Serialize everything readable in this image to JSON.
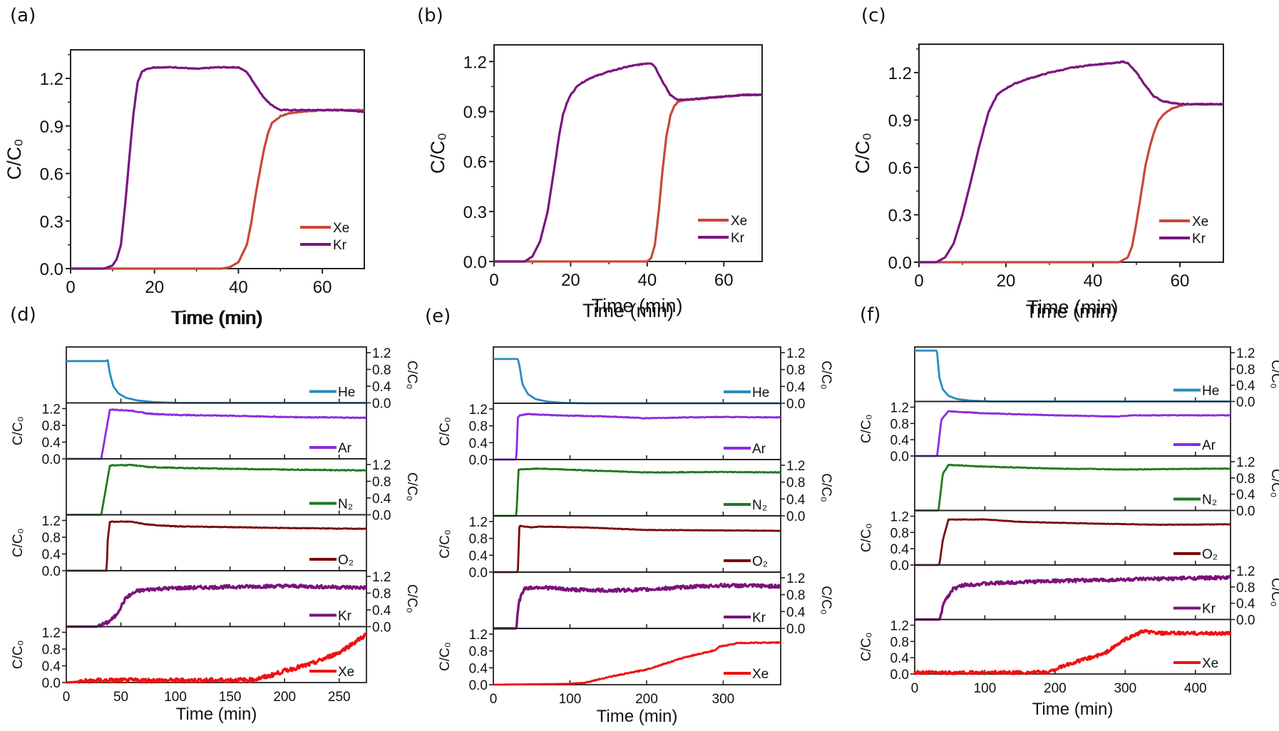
{
  "chart_data": [
    {
      "panel": "(a)",
      "type": "line",
      "xlabel": "Time (min)",
      "ylabel": "C/C₀",
      "xlim": [
        0,
        70
      ],
      "ylim": [
        0,
        1.38
      ],
      "xticks": [
        0,
        20,
        40,
        60
      ],
      "xtick_labels": [
        "0",
        "20",
        "40",
        "60"
      ],
      "yticks": [
        0,
        0.3,
        0.6,
        0.9,
        1.2
      ],
      "ytick_labels": [
        "0.0",
        "0.3",
        "0.6",
        "0.9",
        "1.2"
      ],
      "legend_position": "bottom-right",
      "series": [
        {
          "name": "Xe",
          "color": "#c8483a",
          "x": [
            0,
            36,
            38,
            40,
            42,
            43,
            44,
            45,
            46,
            47,
            48,
            50,
            52,
            55,
            60,
            65,
            70
          ],
          "y": [
            0,
            0,
            0.01,
            0.04,
            0.15,
            0.28,
            0.45,
            0.6,
            0.74,
            0.85,
            0.92,
            0.96,
            0.98,
            0.99,
            1.0,
            1.0,
            1.0
          ]
        },
        {
          "name": "Kr",
          "color": "#7b1580",
          "x": [
            0,
            8,
            10,
            11,
            12,
            13,
            14,
            15,
            16,
            17,
            18,
            20,
            25,
            30,
            35,
            40,
            42,
            44,
            46,
            48,
            50,
            55,
            60,
            65,
            70
          ],
          "y": [
            0,
            0,
            0.02,
            0.06,
            0.15,
            0.4,
            0.7,
            0.98,
            1.18,
            1.24,
            1.26,
            1.27,
            1.27,
            1.26,
            1.27,
            1.27,
            1.24,
            1.16,
            1.08,
            1.03,
            1.0,
            1.0,
            1.0,
            1.0,
            0.99
          ]
        }
      ]
    },
    {
      "panel": "(b)",
      "type": "line",
      "xlabel": "Time (min)",
      "ylabel": "C/C₀",
      "xlim": [
        0,
        70
      ],
      "ylim": [
        0,
        1.3
      ],
      "xticks": [
        0,
        20,
        40,
        60
      ],
      "xtick_labels": [
        "0",
        "20",
        "40",
        "60"
      ],
      "yticks": [
        0,
        0.3,
        0.6,
        0.9,
        1.2
      ],
      "ytick_labels": [
        "0.0",
        "0.3",
        "0.6",
        "0.9",
        "1.2"
      ],
      "legend_position": "bottom-right",
      "series": [
        {
          "name": "Xe",
          "color": "#c8483a",
          "x": [
            0,
            40,
            41,
            42,
            43,
            44,
            45,
            46,
            47,
            48,
            50,
            55,
            60,
            65,
            70
          ],
          "y": [
            0,
            0,
            0.02,
            0.1,
            0.3,
            0.55,
            0.75,
            0.87,
            0.93,
            0.96,
            0.97,
            0.98,
            0.99,
            1.0,
            1.0
          ]
        },
        {
          "name": "Kr",
          "color": "#7b1580",
          "x": [
            0,
            8,
            10,
            12,
            14,
            15,
            16,
            17,
            18,
            19,
            20,
            22,
            25,
            30,
            35,
            40,
            41,
            42,
            44,
            46,
            48,
            50,
            55,
            60,
            65,
            70
          ],
          "y": [
            0,
            0,
            0.03,
            0.12,
            0.3,
            0.45,
            0.6,
            0.76,
            0.88,
            0.95,
            1.0,
            1.06,
            1.1,
            1.14,
            1.17,
            1.19,
            1.19,
            1.17,
            1.08,
            1.0,
            0.97,
            0.97,
            0.98,
            0.99,
            1.0,
            1.0
          ]
        }
      ]
    },
    {
      "panel": "(c)",
      "type": "line",
      "xlabel": "Time (min)",
      "ylabel": "C/C₀",
      "xlim": [
        0,
        70
      ],
      "ylim": [
        0,
        1.38
      ],
      "xticks": [
        0,
        20,
        40,
        60
      ],
      "xtick_labels": [
        "0",
        "20",
        "40",
        "60"
      ],
      "yticks": [
        0,
        0.3,
        0.6,
        0.9,
        1.2
      ],
      "ytick_labels": [
        "0.0",
        "0.3",
        "0.6",
        "0.9",
        "1.2"
      ],
      "legend_position": "bottom-right",
      "series": [
        {
          "name": "Xe",
          "color": "#c8483a",
          "x": [
            0,
            46,
            48,
            49,
            50,
            51,
            52,
            53,
            54,
            55,
            56,
            58,
            60,
            62,
            65,
            70
          ],
          "y": [
            0,
            0,
            0.03,
            0.1,
            0.25,
            0.42,
            0.6,
            0.72,
            0.82,
            0.89,
            0.93,
            0.97,
            0.99,
            1.0,
            1.0,
            1.0
          ]
        },
        {
          "name": "Kr",
          "color": "#7b1580",
          "x": [
            0,
            4,
            6,
            8,
            10,
            12,
            14,
            16,
            18,
            20,
            22,
            25,
            30,
            35,
            40,
            45,
            47,
            48,
            50,
            52,
            54,
            56,
            58,
            60,
            65,
            70
          ],
          "y": [
            0,
            0,
            0.03,
            0.12,
            0.3,
            0.52,
            0.75,
            0.95,
            1.06,
            1.1,
            1.13,
            1.16,
            1.2,
            1.23,
            1.25,
            1.26,
            1.27,
            1.26,
            1.2,
            1.12,
            1.05,
            1.02,
            1.01,
            1.0,
            1.0,
            1.0
          ]
        }
      ]
    },
    {
      "panel": "(d)",
      "type": "line",
      "stacked": true,
      "xlabel": "Time (min)",
      "ylabel": "C/C₀",
      "xlim": [
        0,
        275
      ],
      "ylim": [
        0,
        1.2
      ],
      "xticks": [
        0,
        50,
        100,
        150,
        200,
        250
      ],
      "xtick_labels": [
        "0",
        "50",
        "100",
        "150",
        "200",
        "250"
      ],
      "yticks": [
        0,
        0.4,
        0.8,
        1.2
      ],
      "ytick_labels": [
        "0.0",
        "0.4",
        "0.8",
        "1.2"
      ],
      "top_axis_label": "Time (min)",
      "series": [
        {
          "name": "He",
          "color": "#2a8bbf",
          "axis_side": "right",
          "noise": 0,
          "x": [
            0,
            36,
            38,
            40,
            43,
            48,
            55,
            65,
            80,
            100,
            130,
            275
          ],
          "y": [
            1.0,
            1.0,
            1.02,
            0.7,
            0.4,
            0.22,
            0.12,
            0.06,
            0.02,
            0.0,
            0.0,
            0.0
          ]
        },
        {
          "name": "Ar",
          "color": "#8a2be2",
          "axis_side": "left",
          "noise": 0.01,
          "x": [
            0,
            32,
            40,
            60,
            75,
            100,
            150,
            200,
            275
          ],
          "y": [
            0,
            0,
            1.18,
            1.15,
            1.08,
            1.05,
            1.03,
            1.0,
            0.98
          ]
        },
        {
          "name": "N₂",
          "color": "#1f7a1f",
          "axis_side": "right",
          "noise": 0.01,
          "x": [
            0,
            32,
            40,
            60,
            75,
            100,
            150,
            200,
            275
          ],
          "y": [
            0,
            0,
            1.18,
            1.19,
            1.14,
            1.12,
            1.1,
            1.08,
            1.06
          ]
        },
        {
          "name": "O₂",
          "color": "#7a0a0a",
          "axis_side": "left",
          "noise": 0.008,
          "x": [
            0,
            37,
            38,
            40,
            60,
            75,
            100,
            150,
            200,
            275
          ],
          "y": [
            0,
            0,
            0.75,
            1.17,
            1.17,
            1.1,
            1.06,
            1.04,
            1.02,
            1.0
          ]
        },
        {
          "name": "Kr",
          "color": "#7b127b",
          "axis_side": "right",
          "noise": 0.04,
          "x": [
            0,
            28,
            38,
            45,
            55,
            65,
            80,
            100,
            150,
            200,
            275
          ],
          "y": [
            0,
            0,
            0.1,
            0.25,
            0.7,
            0.85,
            0.9,
            0.92,
            0.95,
            0.97,
            0.93
          ]
        },
        {
          "name": "Xe",
          "color": "#ee1111",
          "axis_side": "left",
          "noise": 0.05,
          "x": [
            0,
            28,
            100,
            170,
            185,
            200,
            225,
            250,
            275
          ],
          "y": [
            0,
            0.05,
            0.05,
            0.06,
            0.15,
            0.28,
            0.45,
            0.72,
            1.15
          ]
        }
      ]
    },
    {
      "panel": "(e)",
      "type": "line",
      "stacked": true,
      "xlabel": "Time (min)",
      "ylabel": "C/C₀",
      "xlim": [
        0,
        375
      ],
      "ylim": [
        0,
        1.2
      ],
      "xticks": [
        0,
        100,
        200,
        300
      ],
      "xtick_labels": [
        "0",
        "100",
        "200",
        "300"
      ],
      "yticks": [
        0,
        0.4,
        0.8,
        1.2
      ],
      "ytick_labels": [
        "0.0",
        "0.4",
        "0.8",
        "1.2"
      ],
      "top_axis_label": "Time (min)",
      "series": [
        {
          "name": "He",
          "color": "#2a8bbf",
          "axis_side": "right",
          "noise": 0,
          "x": [
            0,
            32,
            34,
            38,
            45,
            55,
            70,
            90,
            120,
            375
          ],
          "y": [
            1.05,
            1.05,
            0.9,
            0.45,
            0.22,
            0.1,
            0.04,
            0.01,
            0.0,
            0.0
          ]
        },
        {
          "name": "Ar",
          "color": "#8a2be2",
          "axis_side": "left",
          "noise": 0.008,
          "x": [
            0,
            30,
            32,
            35,
            45,
            80,
            150,
            200,
            250,
            300,
            375
          ],
          "y": [
            0,
            0,
            1.0,
            1.05,
            1.08,
            1.05,
            1.02,
            0.98,
            1.0,
            1.01,
            1.0
          ]
        },
        {
          "name": "N₂",
          "color": "#1f7a1f",
          "axis_side": "right",
          "noise": 0.008,
          "x": [
            0,
            30,
            33,
            60,
            120,
            200,
            300,
            375
          ],
          "y": [
            0,
            0,
            1.1,
            1.12,
            1.08,
            1.03,
            1.04,
            1.03
          ]
        },
        {
          "name": "O₂",
          "color": "#7a0a0a",
          "axis_side": "left",
          "noise": 0.006,
          "x": [
            0,
            32,
            34,
            50,
            60,
            120,
            200,
            300,
            375
          ],
          "y": [
            0,
            0,
            1.1,
            1.06,
            1.08,
            1.06,
            1.0,
            0.99,
            0.98
          ]
        },
        {
          "name": "Kr",
          "color": "#7b127b",
          "axis_side": "right",
          "noise": 0.04,
          "x": [
            0,
            30,
            33,
            40,
            60,
            100,
            150,
            200,
            250,
            300,
            375
          ],
          "y": [
            0,
            0,
            0.6,
            0.95,
            0.98,
            0.92,
            0.9,
            0.92,
            0.98,
            1.02,
            1.0
          ]
        },
        {
          "name": "Xe",
          "color": "#ee1111",
          "axis_side": "left",
          "noise": 0.012,
          "x": [
            0,
            100,
            120,
            150,
            200,
            250,
            290,
            295,
            320,
            375
          ],
          "y": [
            0,
            0.02,
            0.05,
            0.18,
            0.36,
            0.65,
            0.82,
            0.9,
            0.99,
            1.0
          ]
        }
      ]
    },
    {
      "panel": "(f)",
      "type": "line",
      "stacked": true,
      "xlabel": "Time (min)",
      "ylabel": "C/C₀",
      "xlim": [
        0,
        450
      ],
      "ylim": [
        0,
        1.2
      ],
      "xticks": [
        0,
        100,
        200,
        300,
        400
      ],
      "xtick_labels": [
        "0",
        "100",
        "200",
        "300",
        "400"
      ],
      "yticks": [
        0,
        0.4,
        0.8,
        1.2
      ],
      "ytick_labels": [
        "0.0",
        "0.4",
        "0.8",
        "1.2"
      ],
      "top_axis_label": "Time (min)",
      "series": [
        {
          "name": "He",
          "color": "#2a8bbf",
          "axis_side": "right",
          "noise": 0,
          "x": [
            0,
            30,
            32,
            35,
            40,
            48,
            60,
            80,
            110,
            450
          ],
          "y": [
            1.3,
            1.3,
            1.2,
            0.6,
            0.3,
            0.14,
            0.06,
            0.02,
            0.0,
            0.0
          ]
        },
        {
          "name": "Ar",
          "color": "#8a2be2",
          "axis_side": "left",
          "noise": 0.008,
          "x": [
            0,
            32,
            38,
            48,
            100,
            200,
            290,
            310,
            450
          ],
          "y": [
            0,
            0,
            0.9,
            1.1,
            1.05,
            1.0,
            0.97,
            1.0,
            1.0
          ]
        },
        {
          "name": "N₂",
          "color": "#1f7a1f",
          "axis_side": "right",
          "noise": 0.008,
          "x": [
            0,
            34,
            40,
            48,
            100,
            200,
            300,
            450
          ],
          "y": [
            0,
            0,
            0.9,
            1.12,
            1.08,
            1.03,
            1.01,
            1.03
          ]
        },
        {
          "name": "O₂",
          "color": "#7a0a0a",
          "axis_side": "left",
          "noise": 0.006,
          "x": [
            0,
            35,
            40,
            48,
            100,
            150,
            250,
            350,
            450
          ],
          "y": [
            0,
            0,
            0.6,
            1.12,
            1.12,
            1.06,
            1.02,
            0.99,
            1.0
          ]
        },
        {
          "name": "Kr",
          "color": "#7b127b",
          "axis_side": "right",
          "noise": 0.04,
          "x": [
            0,
            36,
            42,
            55,
            70,
            100,
            150,
            200,
            300,
            400,
            450
          ],
          "y": [
            0,
            0,
            0.45,
            0.75,
            0.85,
            0.88,
            0.92,
            0.95,
            0.98,
            1.02,
            1.03
          ]
        },
        {
          "name": "Xe",
          "color": "#ee1111",
          "axis_side": "left",
          "noise": 0.04,
          "x": [
            0,
            190,
            200,
            230,
            270,
            300,
            325,
            350,
            400,
            450
          ],
          "y": [
            0.03,
            0.04,
            0.12,
            0.3,
            0.5,
            0.85,
            1.05,
            1.0,
            1.0,
            1.0
          ]
        }
      ]
    }
  ],
  "panel_labels": [
    "(a)",
    "(b)",
    "(c)",
    "(d)",
    "(e)",
    "(f)"
  ]
}
